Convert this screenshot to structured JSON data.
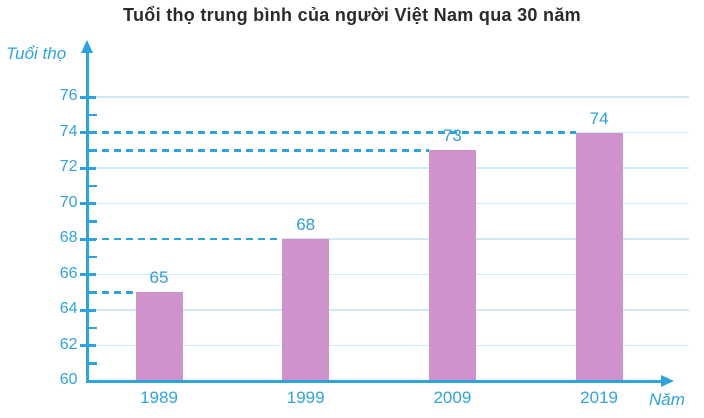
{
  "chart_data": {
    "type": "bar",
    "title": "Tuổi thọ trung bình của người Việt Nam qua 30 năm",
    "ylabel": "Tuổi thọ",
    "xlabel": "Năm",
    "categories": [
      "1989",
      "1999",
      "2009",
      "2019"
    ],
    "values": [
      65,
      68,
      73,
      74
    ],
    "ylim": [
      60,
      77
    ],
    "yticks": [
      60,
      62,
      64,
      66,
      68,
      70,
      72,
      74,
      76
    ],
    "yticks_minor": [
      61,
      63,
      65,
      67,
      69,
      71,
      73,
      75
    ],
    "grid": true,
    "legend_position": "none",
    "value_guides": "dashed lines from y-axis to each bar top",
    "colors": {
      "bar": "#ce93cd",
      "axis": "#2fa3dc",
      "labels": "#2fa3dc",
      "gridline": "#cfeaf6",
      "title_text": "#2b2b2b"
    }
  }
}
